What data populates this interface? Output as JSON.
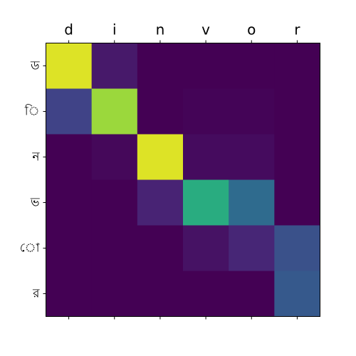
{
  "chart_data": {
    "type": "heatmap",
    "colormap": "viridis",
    "value_range": [
      0,
      1
    ],
    "x_tick_position": "top",
    "y_tick_position": "left",
    "bottom_ticks_without_labels": true,
    "x_labels": [
      "d",
      "i",
      "n",
      "v",
      "o",
      "r"
    ],
    "y_labels": [
      "ড",
      "ি",
      "ন",
      "ভ",
      "ো",
      "র"
    ],
    "values": [
      [
        0.95,
        0.07,
        0.0,
        0.0,
        0.0,
        0.0
      ],
      [
        0.2,
        0.85,
        0.0,
        0.01,
        0.01,
        0.0
      ],
      [
        0.0,
        0.02,
        0.95,
        0.03,
        0.03,
        0.0
      ],
      [
        0.0,
        0.0,
        0.1,
        0.62,
        0.35,
        0.0
      ],
      [
        0.0,
        0.0,
        0.0,
        0.05,
        0.11,
        0.25
      ],
      [
        0.0,
        0.0,
        0.0,
        0.0,
        0.0,
        0.28
      ]
    ]
  }
}
